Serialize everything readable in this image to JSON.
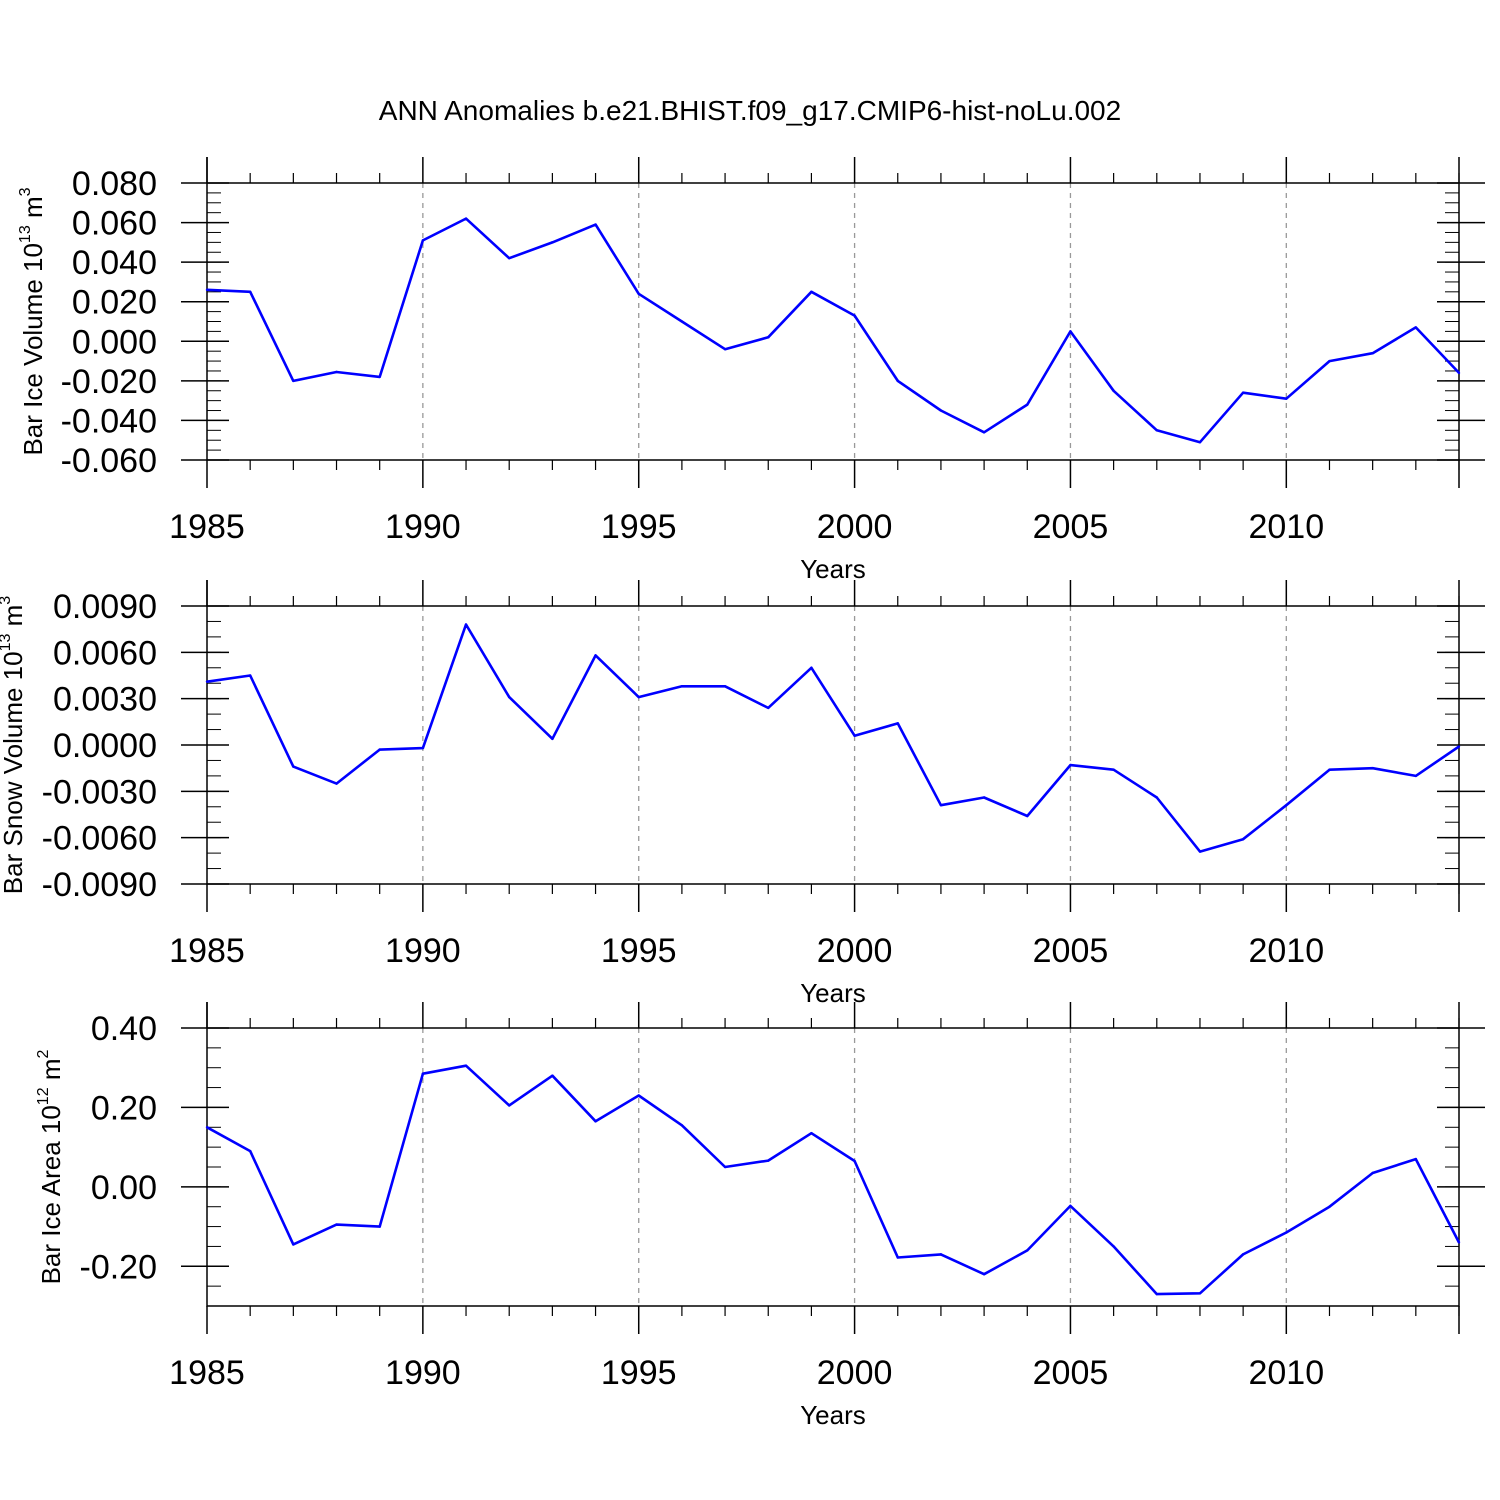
{
  "figure": {
    "title": "ANN Anomalies b.e21.BHIST.f09_g17.CMIP6-hist-noLu.002"
  },
  "colors": {
    "series": "#0000ff",
    "axis": "#000000",
    "grid": "#999999",
    "background": "#ffffff"
  },
  "chart_data": [
    {
      "type": "line",
      "ylabel": "Bar Ice Volume 10",
      "ylabel_exp": "13",
      "ylabel_unit": " m",
      "ylabel_unit_exp": "3",
      "xlabel": "Years",
      "xlim": [
        1985,
        2014
      ],
      "ylim": [
        -0.06,
        0.08
      ],
      "xticks": [
        1985,
        1990,
        1995,
        2000,
        2005,
        2010
      ],
      "xtick_labels": [
        "1985",
        "1990",
        "1995",
        "2000",
        "2005",
        "2010"
      ],
      "yticks": [
        -0.06,
        -0.04,
        -0.02,
        0.0,
        0.02,
        0.04,
        0.06,
        0.08
      ],
      "ytick_labels": [
        "-0.060",
        "-0.040",
        "-0.020",
        "0.000",
        "0.020",
        "0.040",
        "0.060",
        "0.080"
      ],
      "grid_x": true,
      "x": [
        1985,
        1986,
        1987,
        1988,
        1989,
        1990,
        1991,
        1992,
        1993,
        1994,
        1995,
        1996,
        1997,
        1998,
        1999,
        2000,
        2001,
        2002,
        2003,
        2004,
        2005,
        2006,
        2007,
        2008,
        2009,
        2010,
        2011,
        2012,
        2013,
        2014
      ],
      "series": [
        {
          "values": [
            0.026,
            0.025,
            -0.02,
            -0.0155,
            -0.018,
            0.051,
            0.062,
            0.042,
            0.05,
            0.059,
            0.024,
            0.01,
            -0.004,
            0.002,
            0.025,
            0.013,
            -0.02,
            -0.035,
            -0.046,
            -0.032,
            0.005,
            -0.025,
            -0.045,
            -0.051,
            -0.026,
            -0.029,
            -0.01,
            -0.006,
            0.007,
            -0.016
          ]
        }
      ]
    },
    {
      "type": "line",
      "ylabel": "Bar Snow Volume 10",
      "ylabel_exp": "13",
      "ylabel_unit": " m",
      "ylabel_unit_exp": "3",
      "xlabel": "Years",
      "xlim": [
        1985,
        2014
      ],
      "ylim": [
        -0.009,
        0.009
      ],
      "xticks": [
        1985,
        1990,
        1995,
        2000,
        2005,
        2010
      ],
      "xtick_labels": [
        "1985",
        "1990",
        "1995",
        "2000",
        "2005",
        "2010"
      ],
      "yticks": [
        -0.009,
        -0.006,
        -0.003,
        0.0,
        0.003,
        0.006,
        0.009
      ],
      "ytick_labels": [
        "-0.0090",
        "-0.0060",
        "-0.0030",
        "0.0000",
        "0.0030",
        "0.0060",
        "0.0090"
      ],
      "grid_x": true,
      "x": [
        1985,
        1986,
        1987,
        1988,
        1989,
        1990,
        1991,
        1992,
        1993,
        1994,
        1995,
        1996,
        1997,
        1998,
        1999,
        2000,
        2001,
        2002,
        2003,
        2004,
        2005,
        2006,
        2007,
        2008,
        2009,
        2010,
        2011,
        2012,
        2013,
        2014
      ],
      "series": [
        {
          "values": [
            0.0041,
            0.0045,
            -0.0014,
            -0.0025,
            -0.0003,
            -0.0002,
            0.0078,
            0.0031,
            0.0004,
            0.0058,
            0.0031,
            0.0038,
            0.0038,
            0.0024,
            0.005,
            0.0006,
            0.0014,
            -0.0039,
            -0.0034,
            -0.0046,
            -0.0013,
            -0.0016,
            -0.0034,
            -0.0069,
            -0.0061,
            -0.0039,
            -0.0016,
            -0.0015,
            -0.002,
            -0.0001
          ]
        }
      ]
    },
    {
      "type": "line",
      "ylabel": "Bar Ice Area 10",
      "ylabel_exp": "12",
      "ylabel_unit": " m",
      "ylabel_unit_exp": "2",
      "xlabel": "Years",
      "xlim": [
        1985,
        2014
      ],
      "ylim": [
        -0.3,
        0.4
      ],
      "xticks": [
        1985,
        1990,
        1995,
        2000,
        2005,
        2010
      ],
      "xtick_labels": [
        "1985",
        "1990",
        "1995",
        "2000",
        "2005",
        "2010"
      ],
      "yticks": [
        -0.2,
        0.0,
        0.2,
        0.4
      ],
      "ytick_labels": [
        "-0.20",
        "0.00",
        "0.20",
        "0.40"
      ],
      "grid_x": true,
      "x": [
        1985,
        1986,
        1987,
        1988,
        1989,
        1990,
        1991,
        1992,
        1993,
        1994,
        1995,
        1996,
        1997,
        1998,
        1999,
        2000,
        2001,
        2002,
        2003,
        2004,
        2005,
        2006,
        2007,
        2008,
        2009,
        2010,
        2011,
        2012,
        2013,
        2014
      ],
      "series": [
        {
          "values": [
            0.15,
            0.09,
            -0.145,
            -0.095,
            -0.1,
            0.285,
            0.305,
            0.205,
            0.28,
            0.165,
            0.23,
            0.155,
            0.05,
            0.066,
            0.135,
            0.065,
            -0.178,
            -0.17,
            -0.22,
            -0.16,
            -0.048,
            -0.15,
            -0.27,
            -0.268,
            -0.17,
            -0.115,
            -0.05,
            0.035,
            0.07,
            -0.14
          ]
        }
      ]
    }
  ]
}
